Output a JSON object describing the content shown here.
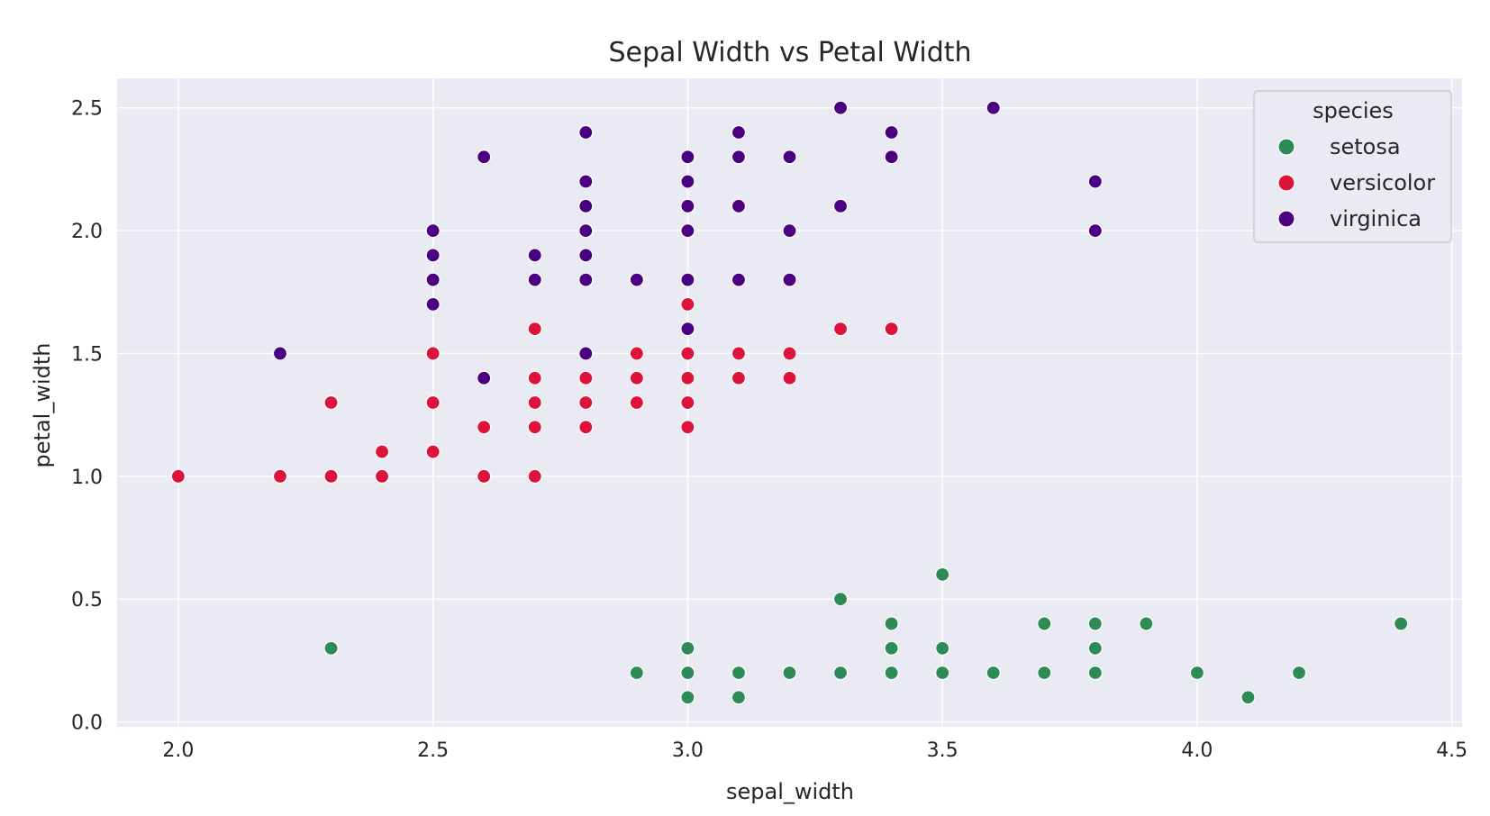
{
  "chart_data": {
    "type": "scatter",
    "title": "Sepal Width vs Petal Width",
    "xlabel": "sepal_width",
    "ylabel": "petal_width",
    "xlim": [
      1.88,
      4.52
    ],
    "ylim": [
      -0.02,
      2.62
    ],
    "x_ticks": [
      2.0,
      2.5,
      3.0,
      3.5,
      4.0,
      4.5
    ],
    "x_tick_labels": [
      "2.0",
      "2.5",
      "3.0",
      "3.5",
      "4.0",
      "4.5"
    ],
    "y_ticks": [
      0.0,
      0.5,
      1.0,
      1.5,
      2.0,
      2.5
    ],
    "y_tick_labels": [
      "0.0",
      "0.5",
      "1.0",
      "1.5",
      "2.0",
      "2.5"
    ],
    "grid": true,
    "legend": {
      "title": "species",
      "placement": "top-right"
    },
    "series": [
      {
        "name": "setosa",
        "color": "#2e8b57",
        "points": [
          [
            2.3,
            0.3
          ],
          [
            2.9,
            0.2
          ],
          [
            3.0,
            0.1
          ],
          [
            3.0,
            0.2
          ],
          [
            3.0,
            0.3
          ],
          [
            3.1,
            0.1
          ],
          [
            3.1,
            0.2
          ],
          [
            3.2,
            0.2
          ],
          [
            3.3,
            0.2
          ],
          [
            3.3,
            0.5
          ],
          [
            3.4,
            0.2
          ],
          [
            3.4,
            0.3
          ],
          [
            3.4,
            0.4
          ],
          [
            3.5,
            0.2
          ],
          [
            3.5,
            0.3
          ],
          [
            3.5,
            0.6
          ],
          [
            3.6,
            0.2
          ],
          [
            3.7,
            0.2
          ],
          [
            3.7,
            0.4
          ],
          [
            3.8,
            0.2
          ],
          [
            3.8,
            0.3
          ],
          [
            3.8,
            0.4
          ],
          [
            3.9,
            0.4
          ],
          [
            4.0,
            0.2
          ],
          [
            4.1,
            0.1
          ],
          [
            4.2,
            0.2
          ],
          [
            4.4,
            0.4
          ]
        ]
      },
      {
        "name": "versicolor",
        "color": "#dc143c",
        "points": [
          [
            2.0,
            1.0
          ],
          [
            2.2,
            1.0
          ],
          [
            2.3,
            1.0
          ],
          [
            2.3,
            1.3
          ],
          [
            2.4,
            1.0
          ],
          [
            2.4,
            1.1
          ],
          [
            2.5,
            1.1
          ],
          [
            2.5,
            1.3
          ],
          [
            2.5,
            1.5
          ],
          [
            2.6,
            1.0
          ],
          [
            2.6,
            1.2
          ],
          [
            2.7,
            1.0
          ],
          [
            2.7,
            1.2
          ],
          [
            2.7,
            1.3
          ],
          [
            2.7,
            1.4
          ],
          [
            2.7,
            1.6
          ],
          [
            2.8,
            1.2
          ],
          [
            2.8,
            1.3
          ],
          [
            2.8,
            1.4
          ],
          [
            2.9,
            1.3
          ],
          [
            2.9,
            1.4
          ],
          [
            2.9,
            1.5
          ],
          [
            3.0,
            1.2
          ],
          [
            3.0,
            1.3
          ],
          [
            3.0,
            1.4
          ],
          [
            3.0,
            1.5
          ],
          [
            3.0,
            1.7
          ],
          [
            3.1,
            1.4
          ],
          [
            3.1,
            1.5
          ],
          [
            3.2,
            1.4
          ],
          [
            3.2,
            1.5
          ],
          [
            3.3,
            1.6
          ],
          [
            3.4,
            1.6
          ]
        ]
      },
      {
        "name": "virginica",
        "color": "#4b0082",
        "points": [
          [
            2.2,
            1.5
          ],
          [
            2.5,
            1.7
          ],
          [
            2.5,
            1.8
          ],
          [
            2.5,
            1.9
          ],
          [
            2.5,
            2.0
          ],
          [
            2.6,
            1.4
          ],
          [
            2.6,
            2.3
          ],
          [
            2.7,
            1.8
          ],
          [
            2.7,
            1.9
          ],
          [
            2.8,
            1.5
          ],
          [
            2.8,
            1.8
          ],
          [
            2.8,
            1.9
          ],
          [
            2.8,
            2.0
          ],
          [
            2.8,
            2.1
          ],
          [
            2.8,
            2.2
          ],
          [
            2.8,
            2.4
          ],
          [
            2.9,
            1.8
          ],
          [
            3.0,
            1.6
          ],
          [
            3.0,
            1.8
          ],
          [
            3.0,
            2.0
          ],
          [
            3.0,
            2.1
          ],
          [
            3.0,
            2.2
          ],
          [
            3.0,
            2.3
          ],
          [
            3.1,
            1.8
          ],
          [
            3.1,
            2.1
          ],
          [
            3.1,
            2.3
          ],
          [
            3.1,
            2.4
          ],
          [
            3.2,
            1.8
          ],
          [
            3.2,
            2.0
          ],
          [
            3.2,
            2.3
          ],
          [
            3.3,
            2.1
          ],
          [
            3.3,
            2.5
          ],
          [
            3.4,
            2.3
          ],
          [
            3.4,
            2.4
          ],
          [
            3.6,
            2.5
          ],
          [
            3.8,
            2.0
          ],
          [
            3.8,
            2.2
          ]
        ]
      }
    ]
  }
}
